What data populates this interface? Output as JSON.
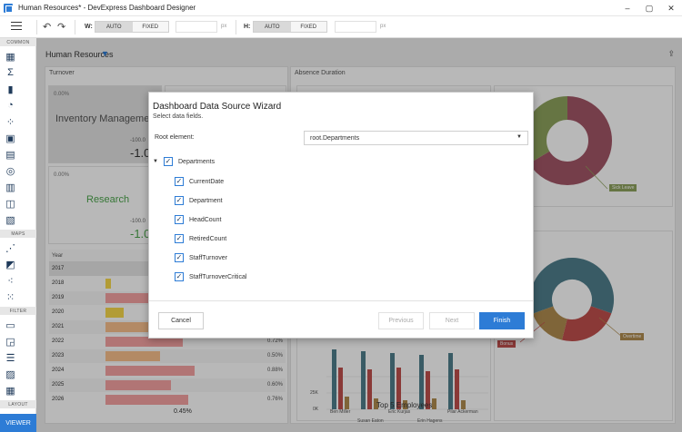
{
  "window": {
    "title": "Human Resources* - DevExpress Dashboard Designer",
    "controls": [
      "–",
      "▢",
      "✕"
    ]
  },
  "toolbar": {
    "width_label": "W:",
    "height_label": "H:",
    "auto": "AUTO",
    "fixed": "FIXED",
    "px": "px",
    "undo_icon": "undo-icon",
    "redo_icon": "redo-icon"
  },
  "sidebar": {
    "sections": [
      {
        "title": "COMMON",
        "icons": [
          "grid-icon",
          "sum-icon",
          "bar-chart-icon",
          "pie-chart-icon",
          "scatter-icon",
          "image-icon",
          "card-icon",
          "gauge-icon",
          "table-icon",
          "treemap-icon",
          "textbox-icon"
        ]
      },
      {
        "title": "MAPS",
        "icons": [
          "choropleth-map-icon",
          "geo-map-icon",
          "bubble-map-icon",
          "pie-map-icon"
        ]
      },
      {
        "title": "FILTER",
        "icons": [
          "combo-box-icon",
          "list-box-icon",
          "tree-view-icon",
          "range-filter-icon",
          "date-filter-icon"
        ]
      },
      {
        "title": "LAYOUT",
        "icons": [
          "group-icon",
          "tab-container-icon"
        ]
      }
    ],
    "viewer_label": "VIEWER"
  },
  "dashboard": {
    "title": "Human Resources",
    "turnover": {
      "caption": "Turnover",
      "cards": [
        {
          "pct": "0.00%",
          "name": "Inventory Manageme",
          "small": "-100.0",
          "big": "-1.0"
        },
        {
          "pct": "0.00%",
          "name": "Research",
          "small": "-100.0",
          "big": "-1.0"
        }
      ],
      "grid": {
        "year_header": "Year",
        "rows": [
          {
            "year": "2017",
            "value": "",
            "bar": 0,
            "color": ""
          },
          {
            "year": "2018",
            "value": "",
            "bar": 0.06,
            "color": "#f7d94c"
          },
          {
            "year": "2019",
            "value": "",
            "bar": 0.9,
            "color": "#f5a3a3"
          },
          {
            "year": "2020",
            "value": "",
            "bar": 0.2,
            "color": "#f7d94c"
          },
          {
            "year": "2021",
            "value": "",
            "bar": 0.73,
            "color": "#f8c08c"
          },
          {
            "year": "2022",
            "value": "0.72%",
            "bar": 0.87,
            "color": "#f5a3a3"
          },
          {
            "year": "2023",
            "value": "0.50%",
            "bar": 0.61,
            "color": "#f8c08c"
          },
          {
            "year": "2024",
            "value": "0.88%",
            "bar": 1.0,
            "color": "#f5a3a3"
          },
          {
            "year": "2025",
            "value": "0.60%",
            "bar": 0.73,
            "color": "#f5a3a3"
          },
          {
            "year": "2026",
            "value": "0.76%",
            "bar": 0.93,
            "color": "#f5a3a3"
          }
        ],
        "total": "0.45%"
      }
    },
    "absence": {
      "caption": "Absence Duration",
      "legend_sick": "Sick Leave",
      "legend_overtime": "Overtime",
      "legend_bonus": "Bonus"
    },
    "employees": {
      "title": "Top 5 Employees",
      "y_ticks": [
        "25K",
        "0K"
      ],
      "names_row1": [
        "Ben Miller",
        "Eric Kurjas",
        "Pilar Ackerman"
      ],
      "names_row2": [
        "Susan Eaton",
        "Erin Hagens"
      ]
    }
  },
  "dialog": {
    "title": "Dashboard Data Source Wizard",
    "subtitle": "Select data fields.",
    "root_label": "Root element:",
    "root_value": "root.Departments",
    "tree": {
      "parent": "Departments",
      "children": [
        "CurrentDate",
        "Department",
        "HeadCount",
        "RetiredCount",
        "StaffTurnover",
        "StaffTurnoverCritical"
      ]
    },
    "buttons": {
      "cancel": "Cancel",
      "previous": "Previous",
      "next": "Next",
      "finish": "Finish"
    }
  }
}
